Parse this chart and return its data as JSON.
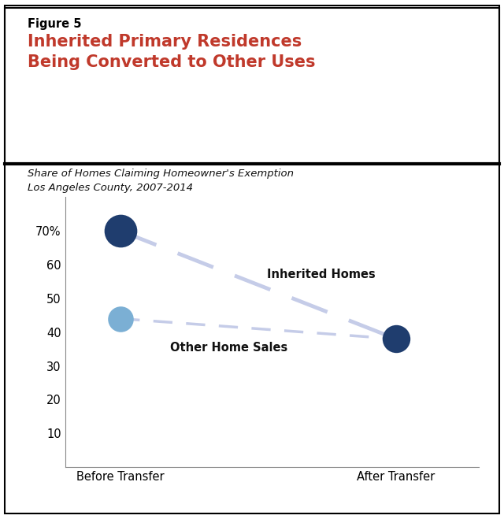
{
  "figure_label": "Figure 5",
  "title_line1": "Inherited Primary Residences",
  "title_line2": "Being Converted to Other Uses",
  "title_color": "#c0392b",
  "figure_label_color": "#000000",
  "subtitle_line1": "Share of Homes Claiming Homeowner's Exemption",
  "subtitle_line2": "Los Angeles County, 2007-2014",
  "x_categories": [
    "Before Transfer",
    "After Transfer"
  ],
  "inherited_homes": [
    70,
    38
  ],
  "other_home_sales": [
    44,
    38
  ],
  "inherited_color_before": "#1f3d6e",
  "inherited_color_after": "#1f3d6e",
  "other_color_before": "#7bafd4",
  "other_color_after": "#1f3d6e",
  "line_color": "#c5cce8",
  "ylim": [
    0,
    80
  ],
  "yticks": [
    10,
    20,
    30,
    40,
    50,
    60,
    70
  ],
  "ytick_labels": [
    "10",
    "20",
    "30",
    "40",
    "50",
    "60",
    "70%"
  ],
  "inherited_label": "Inherited Homes",
  "other_label": "Other Home Sales",
  "background_color": "#ffffff",
  "border_color": "#000000"
}
